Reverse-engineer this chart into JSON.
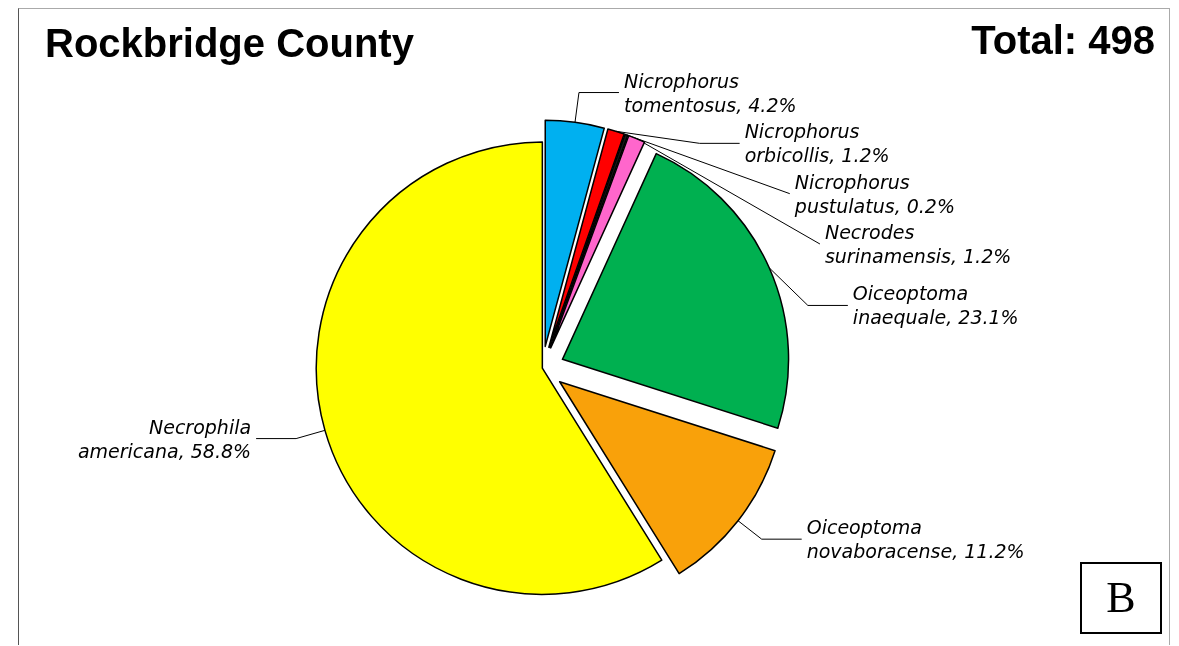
{
  "chart_data": {
    "type": "pie",
    "title": "Rockbridge County",
    "categories": [
      "Nicrophorus tomentosus",
      "Nicrophorus orbicollis",
      "Nicrophorus pustulatus",
      "Necrodes surinamensis",
      "Oiceoptoma inaequale",
      "Oiceoptoma novaboracense",
      "Necrophila americana"
    ],
    "value_labels": [
      ", 4.2%",
      ", 1.2%",
      ", 0.2%",
      ", 1.2%",
      ", 23.1%",
      ", 11.2%",
      ", 58.8%"
    ],
    "values": [
      4.2,
      1.2,
      0.2,
      1.2,
      23.1,
      11.2,
      58.8
    ],
    "colors": [
      "#00b0f0",
      "#ff0000",
      "#1a1a1a",
      "#ff66cc",
      "#00b050",
      "#f9a10a",
      "#ffff00"
    ],
    "legend": false,
    "annotations": [
      "Total: 498",
      "B"
    ]
  }
}
